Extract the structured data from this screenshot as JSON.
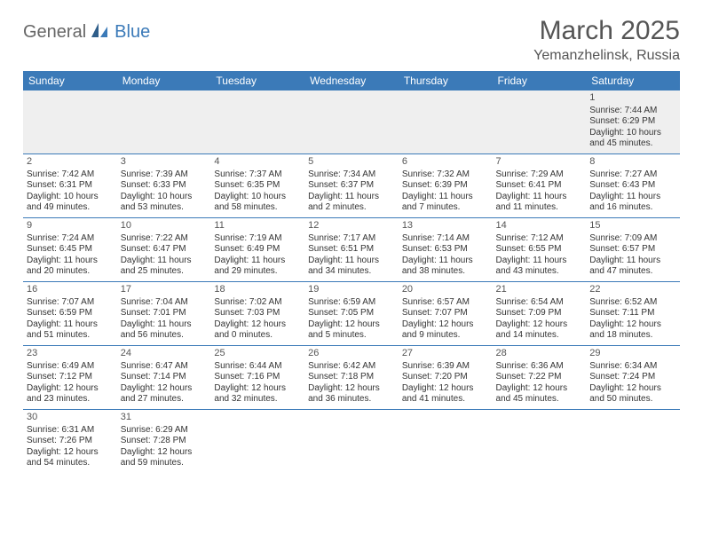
{
  "logo": {
    "text_a": "General",
    "text_b": "Blue"
  },
  "header": {
    "month_title": "March 2025",
    "location": "Yemanzhelinsk, Russia"
  },
  "theme": {
    "accent": "#3b7ab8",
    "header_text": "#ffffff",
    "body_text": "#333333",
    "muted": "#555555",
    "row_alt_bg": "#efefef"
  },
  "day_names": [
    "Sunday",
    "Monday",
    "Tuesday",
    "Wednesday",
    "Thursday",
    "Friday",
    "Saturday"
  ],
  "weeks": [
    [
      null,
      null,
      null,
      null,
      null,
      null,
      {
        "n": "1",
        "sr": "Sunrise: 7:44 AM",
        "ss": "Sunset: 6:29 PM",
        "d1": "Daylight: 10 hours",
        "d2": "and 45 minutes."
      }
    ],
    [
      {
        "n": "2",
        "sr": "Sunrise: 7:42 AM",
        "ss": "Sunset: 6:31 PM",
        "d1": "Daylight: 10 hours",
        "d2": "and 49 minutes."
      },
      {
        "n": "3",
        "sr": "Sunrise: 7:39 AM",
        "ss": "Sunset: 6:33 PM",
        "d1": "Daylight: 10 hours",
        "d2": "and 53 minutes."
      },
      {
        "n": "4",
        "sr": "Sunrise: 7:37 AM",
        "ss": "Sunset: 6:35 PM",
        "d1": "Daylight: 10 hours",
        "d2": "and 58 minutes."
      },
      {
        "n": "5",
        "sr": "Sunrise: 7:34 AM",
        "ss": "Sunset: 6:37 PM",
        "d1": "Daylight: 11 hours",
        "d2": "and 2 minutes."
      },
      {
        "n": "6",
        "sr": "Sunrise: 7:32 AM",
        "ss": "Sunset: 6:39 PM",
        "d1": "Daylight: 11 hours",
        "d2": "and 7 minutes."
      },
      {
        "n": "7",
        "sr": "Sunrise: 7:29 AM",
        "ss": "Sunset: 6:41 PM",
        "d1": "Daylight: 11 hours",
        "d2": "and 11 minutes."
      },
      {
        "n": "8",
        "sr": "Sunrise: 7:27 AM",
        "ss": "Sunset: 6:43 PM",
        "d1": "Daylight: 11 hours",
        "d2": "and 16 minutes."
      }
    ],
    [
      {
        "n": "9",
        "sr": "Sunrise: 7:24 AM",
        "ss": "Sunset: 6:45 PM",
        "d1": "Daylight: 11 hours",
        "d2": "and 20 minutes."
      },
      {
        "n": "10",
        "sr": "Sunrise: 7:22 AM",
        "ss": "Sunset: 6:47 PM",
        "d1": "Daylight: 11 hours",
        "d2": "and 25 minutes."
      },
      {
        "n": "11",
        "sr": "Sunrise: 7:19 AM",
        "ss": "Sunset: 6:49 PM",
        "d1": "Daylight: 11 hours",
        "d2": "and 29 minutes."
      },
      {
        "n": "12",
        "sr": "Sunrise: 7:17 AM",
        "ss": "Sunset: 6:51 PM",
        "d1": "Daylight: 11 hours",
        "d2": "and 34 minutes."
      },
      {
        "n": "13",
        "sr": "Sunrise: 7:14 AM",
        "ss": "Sunset: 6:53 PM",
        "d1": "Daylight: 11 hours",
        "d2": "and 38 minutes."
      },
      {
        "n": "14",
        "sr": "Sunrise: 7:12 AM",
        "ss": "Sunset: 6:55 PM",
        "d1": "Daylight: 11 hours",
        "d2": "and 43 minutes."
      },
      {
        "n": "15",
        "sr": "Sunrise: 7:09 AM",
        "ss": "Sunset: 6:57 PM",
        "d1": "Daylight: 11 hours",
        "d2": "and 47 minutes."
      }
    ],
    [
      {
        "n": "16",
        "sr": "Sunrise: 7:07 AM",
        "ss": "Sunset: 6:59 PM",
        "d1": "Daylight: 11 hours",
        "d2": "and 51 minutes."
      },
      {
        "n": "17",
        "sr": "Sunrise: 7:04 AM",
        "ss": "Sunset: 7:01 PM",
        "d1": "Daylight: 11 hours",
        "d2": "and 56 minutes."
      },
      {
        "n": "18",
        "sr": "Sunrise: 7:02 AM",
        "ss": "Sunset: 7:03 PM",
        "d1": "Daylight: 12 hours",
        "d2": "and 0 minutes."
      },
      {
        "n": "19",
        "sr": "Sunrise: 6:59 AM",
        "ss": "Sunset: 7:05 PM",
        "d1": "Daylight: 12 hours",
        "d2": "and 5 minutes."
      },
      {
        "n": "20",
        "sr": "Sunrise: 6:57 AM",
        "ss": "Sunset: 7:07 PM",
        "d1": "Daylight: 12 hours",
        "d2": "and 9 minutes."
      },
      {
        "n": "21",
        "sr": "Sunrise: 6:54 AM",
        "ss": "Sunset: 7:09 PM",
        "d1": "Daylight: 12 hours",
        "d2": "and 14 minutes."
      },
      {
        "n": "22",
        "sr": "Sunrise: 6:52 AM",
        "ss": "Sunset: 7:11 PM",
        "d1": "Daylight: 12 hours",
        "d2": "and 18 minutes."
      }
    ],
    [
      {
        "n": "23",
        "sr": "Sunrise: 6:49 AM",
        "ss": "Sunset: 7:12 PM",
        "d1": "Daylight: 12 hours",
        "d2": "and 23 minutes."
      },
      {
        "n": "24",
        "sr": "Sunrise: 6:47 AM",
        "ss": "Sunset: 7:14 PM",
        "d1": "Daylight: 12 hours",
        "d2": "and 27 minutes."
      },
      {
        "n": "25",
        "sr": "Sunrise: 6:44 AM",
        "ss": "Sunset: 7:16 PM",
        "d1": "Daylight: 12 hours",
        "d2": "and 32 minutes."
      },
      {
        "n": "26",
        "sr": "Sunrise: 6:42 AM",
        "ss": "Sunset: 7:18 PM",
        "d1": "Daylight: 12 hours",
        "d2": "and 36 minutes."
      },
      {
        "n": "27",
        "sr": "Sunrise: 6:39 AM",
        "ss": "Sunset: 7:20 PM",
        "d1": "Daylight: 12 hours",
        "d2": "and 41 minutes."
      },
      {
        "n": "28",
        "sr": "Sunrise: 6:36 AM",
        "ss": "Sunset: 7:22 PM",
        "d1": "Daylight: 12 hours",
        "d2": "and 45 minutes."
      },
      {
        "n": "29",
        "sr": "Sunrise: 6:34 AM",
        "ss": "Sunset: 7:24 PM",
        "d1": "Daylight: 12 hours",
        "d2": "and 50 minutes."
      }
    ],
    [
      {
        "n": "30",
        "sr": "Sunrise: 6:31 AM",
        "ss": "Sunset: 7:26 PM",
        "d1": "Daylight: 12 hours",
        "d2": "and 54 minutes."
      },
      {
        "n": "31",
        "sr": "Sunrise: 6:29 AM",
        "ss": "Sunset: 7:28 PM",
        "d1": "Daylight: 12 hours",
        "d2": "and 59 minutes."
      },
      null,
      null,
      null,
      null,
      null
    ]
  ]
}
